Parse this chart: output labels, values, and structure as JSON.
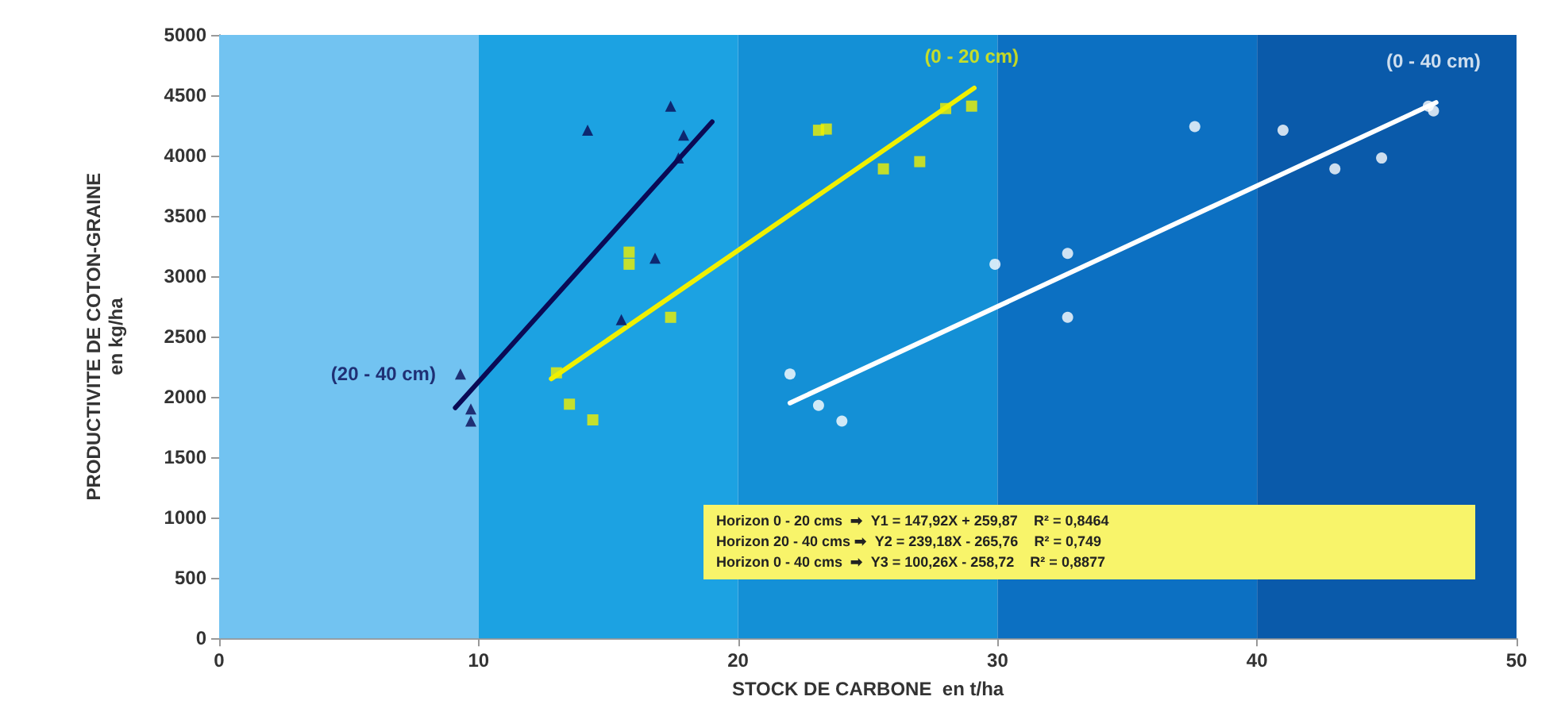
{
  "chart_data": {
    "type": "scatter",
    "xlabel": "STOCK DE CARBONE  en t/ha",
    "ylabel": "PRODUCTIVITE DE COTON-GRAINE\nen kg/ha",
    "xlim": [
      0,
      50
    ],
    "xticks": [
      0,
      10,
      20,
      30,
      40,
      50
    ],
    "ylim": [
      0,
      5000
    ],
    "yticks": [
      0,
      500,
      1000,
      1500,
      2000,
      2500,
      3000,
      3500,
      4000,
      4500,
      5000
    ],
    "grid": false,
    "bands": [
      {
        "axis": "x",
        "from": 0,
        "to": 10,
        "color": "#72c3f1"
      },
      {
        "axis": "x",
        "from": 10,
        "to": 20,
        "color": "#1ca2e2"
      },
      {
        "axis": "x",
        "from": 20,
        "to": 30,
        "color": "#1490d6"
      },
      {
        "axis": "x",
        "from": 30,
        "to": 40,
        "color": "#0c70c2"
      },
      {
        "axis": "x",
        "from": 40,
        "to": 50,
        "color": "#0a5aaa"
      }
    ],
    "series": [
      {
        "name": "(20 - 40 cm)",
        "marker": "triangle",
        "color": "#0a0a55",
        "x": [
          9.3,
          9.7,
          9.7,
          14.2,
          15.5,
          16.8,
          17.4,
          17.7,
          17.9
        ],
        "values": [
          2190,
          1900,
          1800,
          4210,
          2640,
          3150,
          4410,
          3980,
          4170
        ]
      },
      {
        "name": "(0 - 20 cm)",
        "marker": "square",
        "color": "#f0f000",
        "x": [
          13.0,
          13.5,
          14.4,
          15.8,
          15.8,
          17.4,
          23.1,
          23.4,
          25.6,
          27.0,
          28.0,
          29.0
        ],
        "values": [
          2200,
          1940,
          1810,
          3100,
          3200,
          2660,
          4210,
          4220,
          3890,
          3950,
          4390,
          4410
        ]
      },
      {
        "name": "(0 - 40 cm)",
        "marker": "circle",
        "color": "#ffffff",
        "x": [
          22.0,
          23.1,
          24.0,
          29.9,
          32.7,
          32.7,
          37.6,
          41.0,
          43.0,
          44.8,
          46.6,
          46.8
        ],
        "values": [
          2190,
          1930,
          1800,
          3100,
          3190,
          2660,
          4240,
          4210,
          3890,
          3980,
          4410,
          4370
        ]
      },
      {
        "type": "line",
        "marker": "none",
        "color": "#0a0a55",
        "x": [
          9.1,
          19.0
        ],
        "values": [
          1910,
          4280
        ]
      },
      {
        "type": "line",
        "marker": "none",
        "color": "#f0f000",
        "x": [
          12.8,
          29.1
        ],
        "values": [
          2150,
          4560
        ]
      },
      {
        "type": "line",
        "marker": "none",
        "color": "#ffffff",
        "x": [
          22.0,
          46.9
        ],
        "values": [
          1950,
          4440
        ]
      }
    ],
    "annotations": [
      "Horizon 0 - 20 cms  ➡  Y1 = 147,92X + 259,87    R² = 0,8464",
      "Horizon 20 - 40 cms ➡  Y2 = 239,18X - 265,76    R² = 0,749",
      "Horizon 0 - 40 cms  ➡  Y3 = 100,26X - 258,72    R² = 0,8877"
    ]
  }
}
